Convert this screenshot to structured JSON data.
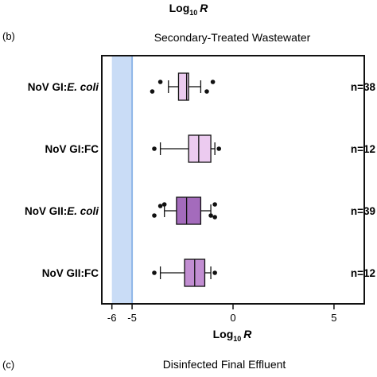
{
  "top_axis_title": {
    "base": "Log",
    "sub": "10",
    "var": "R"
  },
  "panel_b_label": "(b)",
  "panel_c_label": "(c)",
  "panel_c_title": "Disinfected Final Effluent",
  "chart_data": {
    "type": "box",
    "title": "Secondary-Treated Wastewater",
    "xlabel": {
      "base": "Log",
      "sub": "10",
      "var": "R"
    },
    "xlim": [
      -6.5,
      6.5
    ],
    "xticks": [
      {
        "value": -6,
        "label": "-6"
      },
      {
        "value": -5,
        "label": "-5"
      },
      {
        "value": 0,
        "label": "0"
      },
      {
        "value": 5,
        "label": "5"
      }
    ],
    "shaded_band": {
      "from": -6,
      "to": -5,
      "color": "#c9dcf6",
      "edge_color": "#8fb6e8"
    },
    "series": [
      {
        "prefix": "NoV GI:",
        "suffix": "E. coli",
        "suffix_italic": true,
        "n_label": "n=38",
        "whisker_low": -3.2,
        "q1": -2.7,
        "median": -2.3,
        "q3": -2.2,
        "whisker_high": -1.6,
        "outliers": [
          -4.0,
          -3.6,
          -1.3,
          -1.0
        ],
        "color": "#eccbf0"
      },
      {
        "prefix": "NoV GI:FC",
        "suffix": "",
        "suffix_italic": false,
        "n_label": "n=12",
        "whisker_low": -3.6,
        "q1": -2.2,
        "median": -1.7,
        "q3": -1.1,
        "whisker_high": -0.9,
        "outliers": [
          -3.9,
          -0.7
        ],
        "color": "#eccbf0"
      },
      {
        "prefix": "NoV GII:",
        "suffix": "E. coli",
        "suffix_italic": true,
        "n_label": "n=39",
        "whisker_low": -3.4,
        "q1": -2.8,
        "median": -2.3,
        "q3": -1.6,
        "whisker_high": -1.1,
        "outliers": [
          -3.9,
          -3.6,
          -3.4,
          -1.1,
          -0.9,
          -0.9
        ],
        "color": "#a46bbc"
      },
      {
        "prefix": "NoV GII:FC",
        "suffix": "",
        "suffix_italic": false,
        "n_label": "n=12",
        "whisker_low": -3.6,
        "q1": -2.4,
        "median": -1.9,
        "q3": -1.4,
        "whisker_high": -1.1,
        "outliers": [
          -3.9,
          -0.9
        ],
        "color": "#c28ed2"
      }
    ]
  }
}
